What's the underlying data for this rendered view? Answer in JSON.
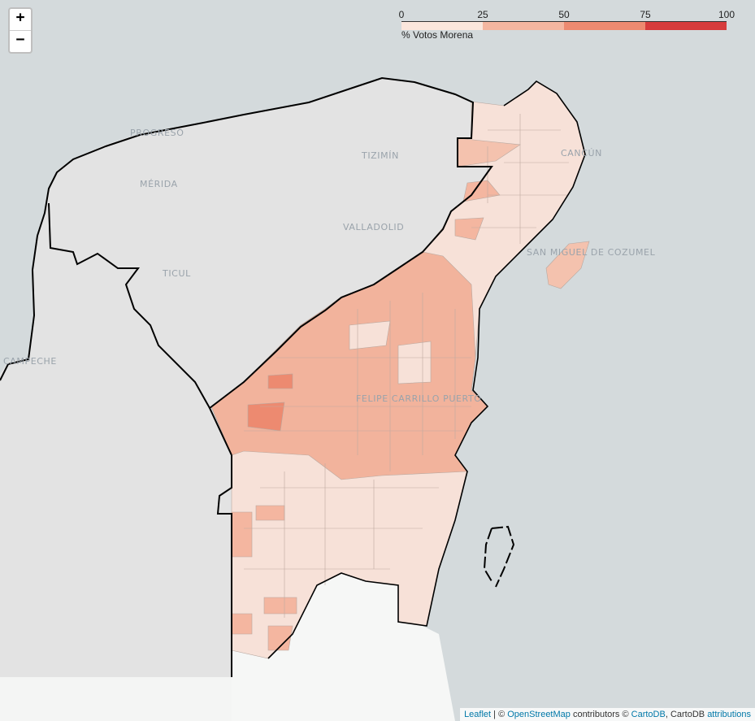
{
  "zoom": {
    "in_label": "+",
    "out_label": "−"
  },
  "legend": {
    "title": "% Votos Morena",
    "ticks": [
      "0",
      "25",
      "50",
      "75",
      "100"
    ],
    "bins": [
      {
        "color": "#fbe6dc"
      },
      {
        "color": "#f4b6a0"
      },
      {
        "color": "#ed8a70"
      },
      {
        "color": "#d63c3c"
      }
    ]
  },
  "places": [
    "PROGRESO",
    "MÉRIDA",
    "TIZIMÍN",
    "VALLADOLID",
    "TICUL",
    "CAMPECHE",
    "CANCÚN",
    "SAN MIGUEL DE COZUMEL",
    "FELIPE CARRILLO PUERTO"
  ],
  "attribution": {
    "leaflet": "Leaflet",
    "sep": " | © ",
    "osm": "OpenStreetMap",
    "contrib": " contributors © ",
    "carto": "CartoDB",
    "carto2": ", CartoDB ",
    "attributions": "attributions"
  }
}
